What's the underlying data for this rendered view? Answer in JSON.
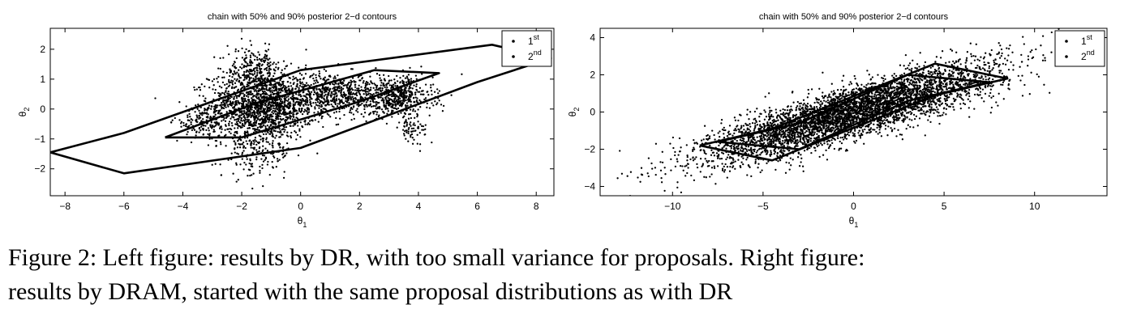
{
  "chart_data": [
    {
      "type": "scatter",
      "title": "chain with 50% and 90% posterior 2−d contours",
      "xlabel": "θ",
      "xlabel_sub": "1",
      "ylabel": "θ",
      "ylabel_sub": "2",
      "xlim": [
        -8.5,
        8.6
      ],
      "ylim": [
        -2.9,
        2.7
      ],
      "xticks": [
        -8,
        -6,
        -4,
        -2,
        0,
        2,
        4,
        6,
        8
      ],
      "yticks": [
        -2,
        -1,
        0,
        1,
        2
      ],
      "xtick_labels": [
        "−8",
        "−6",
        "−4",
        "−2",
        "0",
        "2",
        "4",
        "6",
        "8"
      ],
      "ytick_labels": [
        "−2",
        "−1",
        "0",
        "1",
        "2"
      ],
      "grid": false,
      "legend_position": "top-right",
      "legend": [
        {
          "marker": "•",
          "text": "1",
          "sup": "st"
        },
        {
          "marker": "•",
          "text": "2",
          "sup": "nd"
        }
      ],
      "contours": [
        {
          "level": "50%",
          "center": [
            0,
            0
          ],
          "points": [
            [
              -4.6,
              -0.95
            ],
            [
              -2,
              -0.95
            ],
            [
              2,
              0.25
            ],
            [
              4.7,
              1.2
            ],
            [
              2.5,
              1.3
            ],
            [
              -1.5,
              0.2
            ],
            [
              -4.6,
              -0.95
            ]
          ]
        },
        {
          "level": "90%",
          "center": [
            0,
            0
          ],
          "points": [
            [
              -8.5,
              -1.45
            ],
            [
              -6,
              -2.15
            ],
            [
              0,
              -1.3
            ],
            [
              6,
              0.9
            ],
            [
              8.5,
              1.7
            ],
            [
              6.5,
              2.15
            ],
            [
              0,
              1.3
            ],
            [
              -6,
              -0.8
            ],
            [
              -8.5,
              -1.45
            ]
          ]
        }
      ],
      "clusters": [
        {
          "center": [
            -1.3,
            0.1
          ],
          "spread": [
            0.9,
            0.55
          ],
          "count": 1500
        },
        {
          "center": [
            1.2,
            0.5
          ],
          "spread": [
            0.9,
            0.35
          ],
          "count": 700
        },
        {
          "center": [
            3.3,
            0.4
          ],
          "spread": [
            0.6,
            0.35
          ],
          "count": 500
        },
        {
          "center": [
            -3.3,
            -0.45
          ],
          "spread": [
            0.5,
            0.25
          ],
          "count": 150
        },
        {
          "center": [
            -1.5,
            -1.4
          ],
          "spread": [
            0.6,
            0.45
          ],
          "count": 200
        },
        {
          "center": [
            -1.6,
            1.3
          ],
          "spread": [
            0.45,
            0.35
          ],
          "count": 250
        },
        {
          "center": [
            3.8,
            -0.7
          ],
          "spread": [
            0.25,
            0.2
          ],
          "count": 60
        }
      ]
    },
    {
      "type": "scatter",
      "title": "chain with 50% and 90% posterior 2−d contours",
      "xlabel": "θ",
      "xlabel_sub": "1",
      "ylabel": "θ",
      "ylabel_sub": "2",
      "xlim": [
        -14,
        14
      ],
      "ylim": [
        -4.5,
        4.5
      ],
      "xticks": [
        -10,
        -5,
        0,
        5,
        10
      ],
      "yticks": [
        -4,
        -2,
        0,
        2,
        4
      ],
      "xtick_labels": [
        "−10",
        "−5",
        "0",
        "5",
        "10"
      ],
      "ytick_labels": [
        "−4",
        "−2",
        "0",
        "2",
        "4"
      ],
      "grid": false,
      "legend_position": "top-right",
      "legend": [
        {
          "marker": "•",
          "text": "1",
          "sup": "st"
        },
        {
          "marker": "•",
          "text": "2",
          "sup": "nd"
        }
      ],
      "contours": [
        {
          "level": "50%",
          "center": [
            0,
            0
          ],
          "points": [
            [
              -7.5,
              -1.6
            ],
            [
              -3,
              -2.0
            ],
            [
              3,
              0.6
            ],
            [
              7.5,
              1.6
            ],
            [
              3,
              2.0
            ],
            [
              -3,
              -0.6
            ],
            [
              -7.5,
              -1.6
            ]
          ]
        },
        {
          "level": "90%",
          "center": [
            0,
            0
          ],
          "points": [
            [
              -8.5,
              -1.8
            ],
            [
              -4.5,
              -2.6
            ],
            [
              4.5,
              0.9
            ],
            [
              8.5,
              1.8
            ],
            [
              4.5,
              2.6
            ],
            [
              -4.5,
              -0.9
            ],
            [
              -8.5,
              -1.8
            ]
          ]
        }
      ],
      "clusters": [
        {
          "center": [
            0,
            0
          ],
          "spread": [
            4.0,
            1.3
          ],
          "correlation": 0.85,
          "count": 4500
        }
      ]
    }
  ],
  "caption": {
    "line1": "Figure 2: Left figure:   results by DR, with too small variance for proposals. Right figure:",
    "line2": "results by DRAM, started with the same proposal distributions as with DR"
  }
}
